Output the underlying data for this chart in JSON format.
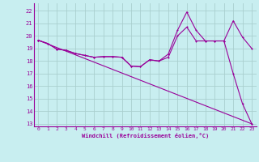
{
  "xlabel": "Windchill (Refroidissement éolien,°C)",
  "bg_color": "#c8eef0",
  "grid_color": "#aacfcf",
  "line_color": "#990099",
  "xlim": [
    -0.5,
    23.5
  ],
  "ylim": [
    12.8,
    22.6
  ],
  "yticks": [
    13,
    14,
    15,
    16,
    17,
    18,
    19,
    20,
    21,
    22
  ],
  "xticks": [
    0,
    1,
    2,
    3,
    4,
    5,
    6,
    7,
    8,
    9,
    10,
    11,
    12,
    13,
    14,
    15,
    16,
    17,
    18,
    19,
    20,
    21,
    22,
    23
  ],
  "line1_x": [
    0,
    1,
    2,
    3,
    4,
    5,
    6,
    7,
    8,
    9,
    10,
    11,
    12,
    13,
    14,
    15,
    16,
    17,
    18,
    19,
    20,
    21,
    22,
    23
  ],
  "line1_y": [
    19.65,
    19.4,
    18.95,
    18.85,
    18.6,
    18.45,
    18.3,
    18.35,
    18.35,
    18.3,
    17.6,
    17.55,
    18.1,
    18.0,
    18.3,
    20.0,
    20.7,
    19.6,
    19.6,
    19.6,
    19.6,
    17.0,
    14.6,
    13.0
  ],
  "line2_x": [
    0,
    1,
    2,
    3,
    4,
    5,
    6,
    7,
    8,
    9,
    10,
    11,
    12,
    13,
    14,
    15,
    16,
    17,
    18,
    19,
    20,
    21,
    22,
    23
  ],
  "line2_y": [
    19.65,
    19.4,
    18.95,
    18.85,
    18.6,
    18.45,
    18.3,
    18.35,
    18.35,
    18.3,
    17.6,
    17.55,
    18.1,
    18.0,
    18.55,
    20.45,
    21.9,
    20.45,
    19.6,
    19.6,
    19.6,
    21.2,
    19.9,
    19.0
  ],
  "line3_x": [
    0,
    23
  ],
  "line3_y": [
    19.65,
    13.0
  ]
}
